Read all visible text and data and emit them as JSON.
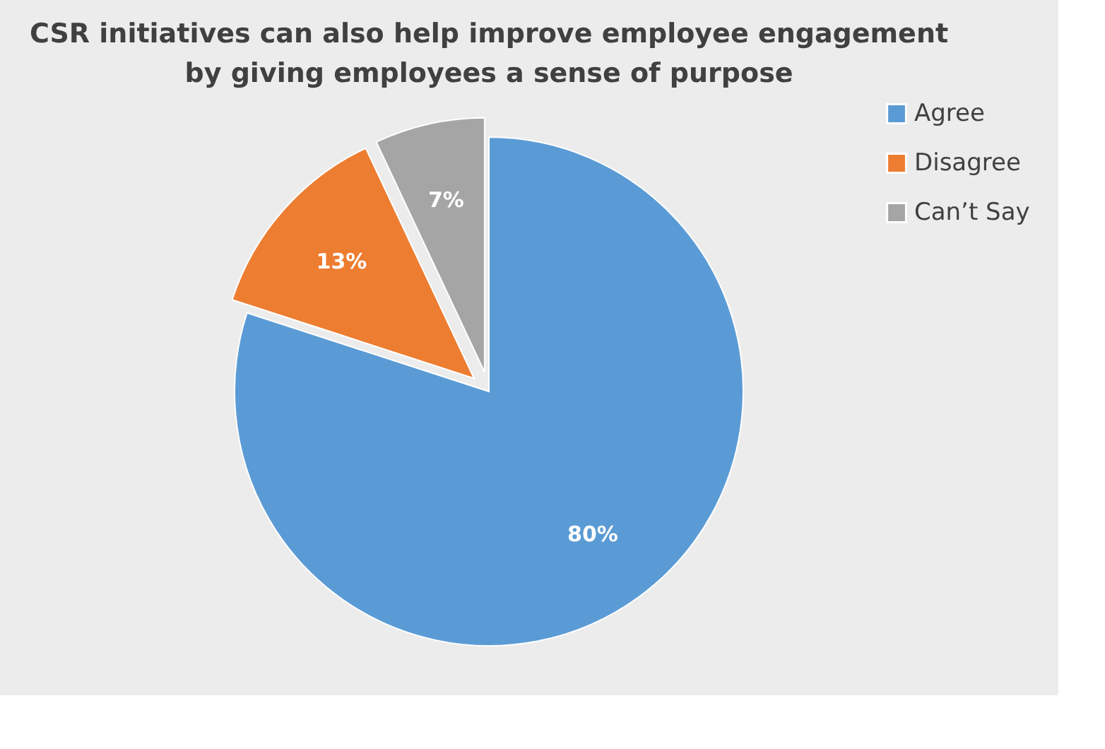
{
  "chart_data": {
    "type": "pie",
    "title": "CSR initiatives can also help improve employee engagement by giving employees a sense of purpose",
    "categories": [
      "Agree",
      "Disagree",
      "Can’t Say"
    ],
    "values": [
      80,
      13,
      7
    ],
    "value_labels": [
      "80%",
      "13%",
      "7%"
    ],
    "colors": [
      "#5b9bd5",
      "#ed7d31",
      "#a5a5a5"
    ],
    "legend": "right"
  }
}
